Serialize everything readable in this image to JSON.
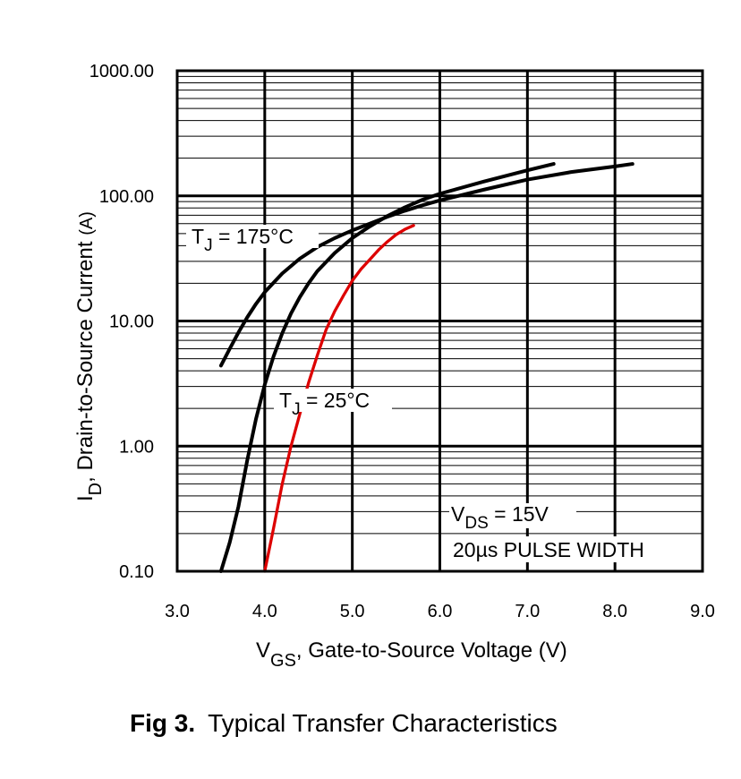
{
  "figure": {
    "caption_label": "Fig 3.",
    "caption_title": "Typical Transfer Characteristics"
  },
  "chart_data": {
    "type": "line",
    "title": "Typical Transfer Characteristics",
    "xlabel": {
      "main": "V",
      "sub": "GS",
      "rest": ", Gate-to-Source Voltage (V)"
    },
    "ylabel": {
      "main": "I",
      "sub": "D",
      "rest": ", Drain-to-Source Current ",
      "unit": "(A)"
    },
    "x_ticks": [
      "3.0",
      "4.0",
      "5.0",
      "6.0",
      "7.0",
      "8.0",
      "9.0"
    ],
    "y_ticks": [
      "0.10",
      "1.00",
      "10.00",
      "100.00",
      "1000.00"
    ],
    "xlim": [
      3.0,
      9.0
    ],
    "ylim": [
      0.1,
      1000
    ],
    "yscale": "log",
    "grid": "on",
    "series": [
      {
        "name": "T J = 175°C",
        "color": "#000000",
        "x": [
          3.5,
          3.6,
          3.7,
          3.8,
          3.9,
          4.0,
          4.2,
          4.4,
          4.6,
          4.8,
          5.0,
          5.2,
          5.4,
          5.6,
          5.8,
          6.0,
          6.5,
          7.0,
          7.5,
          8.0,
          8.2
        ],
        "y": [
          4.4,
          6.0,
          8.1,
          10.7,
          13.7,
          17.0,
          24.0,
          31.5,
          39.0,
          46.0,
          53.0,
          60.0,
          68.0,
          76.0,
          84.0,
          92.0,
          112.0,
          135.0,
          155.0,
          172.0,
          180.0
        ]
      },
      {
        "name": "T J = 25°C",
        "color": "#000000",
        "x": [
          3.5,
          3.6,
          3.7,
          3.8,
          3.9,
          4.0,
          4.1,
          4.2,
          4.3,
          4.4,
          4.5,
          4.6,
          4.8,
          5.0,
          5.2,
          5.4,
          5.6,
          5.8,
          6.0,
          6.5,
          7.0,
          7.3
        ],
        "y": [
          0.1,
          0.17,
          0.33,
          0.77,
          1.65,
          3.1,
          5.2,
          8.0,
          11.5,
          15.5,
          20.0,
          25.0,
          35.0,
          46.0,
          57.0,
          69.0,
          81.0,
          93.0,
          104.0,
          130.0,
          160.0,
          180.0
        ]
      },
      {
        "name": "T J = 25°C (red)",
        "color": "#dd0000",
        "x": [
          4.0,
          4.1,
          4.2,
          4.3,
          4.4,
          4.5,
          4.6,
          4.7,
          4.8,
          4.9,
          5.0,
          5.1,
          5.2,
          5.3,
          5.4,
          5.5,
          5.6,
          5.7
        ],
        "y": [
          0.1,
          0.22,
          0.5,
          1.0,
          1.8,
          3.2,
          5.3,
          8.5,
          12.0,
          16.0,
          21.0,
          26.0,
          31.0,
          37.0,
          43.0,
          49.0,
          54.0,
          58.0
        ]
      }
    ],
    "annotations": [
      {
        "main": "T",
        "sub": "J",
        "rest": " = 175°C"
      },
      {
        "main": "T",
        "sub": "J",
        "rest": " = 25°C"
      },
      {
        "main": "V",
        "sub": "DS",
        "rest": " = 15V"
      },
      {
        "text": "20µs PULSE WIDTH"
      }
    ]
  }
}
